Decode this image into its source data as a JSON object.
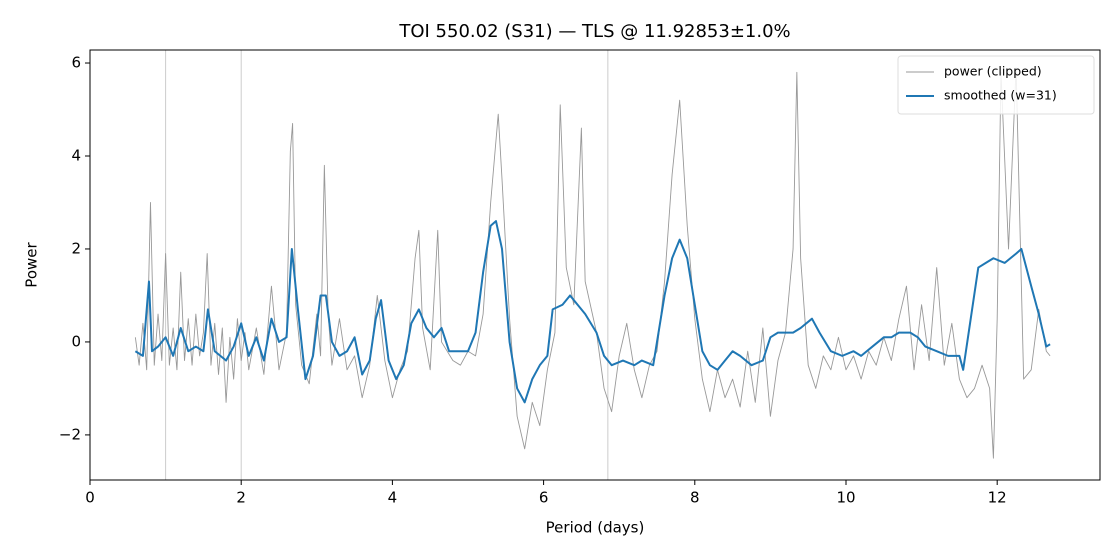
{
  "chart_data": {
    "type": "line",
    "title": "TOI 550.02 (S31) — TLS @ 11.92853±1.0%",
    "x_label": "Period (days)",
    "y_label": "Power",
    "xlim": [
      0,
      13.36
    ],
    "ylim": [
      -2.97,
      6.28
    ],
    "xticks": [
      0,
      2,
      4,
      6,
      8,
      10,
      12
    ],
    "yticks": [
      {
        "value": -2,
        "label": "−2"
      },
      0,
      2,
      4,
      6
    ],
    "vlines": [
      1.0,
      2.0,
      6.85
    ],
    "vline_color": "#cccccc",
    "legend": "upper right",
    "series": [
      {
        "name": "power (clipped)",
        "color": "#999999",
        "width": 0.9,
        "x": [
          0.6,
          0.65,
          0.7,
          0.75,
          0.8,
          0.85,
          0.9,
          0.95,
          1.0,
          1.05,
          1.1,
          1.15,
          1.2,
          1.25,
          1.3,
          1.35,
          1.4,
          1.45,
          1.5,
          1.55,
          1.6,
          1.65,
          1.7,
          1.75,
          1.8,
          1.85,
          1.9,
          1.95,
          2.0,
          2.05,
          2.1,
          2.2,
          2.3,
          2.4,
          2.5,
          2.6,
          2.65,
          2.68,
          2.72,
          2.8,
          2.9,
          3.0,
          3.05,
          3.1,
          3.15,
          3.2,
          3.3,
          3.4,
          3.5,
          3.6,
          3.7,
          3.8,
          3.9,
          4.0,
          4.1,
          4.2,
          4.3,
          4.35,
          4.4,
          4.5,
          4.6,
          4.65,
          4.8,
          4.9,
          5.0,
          5.1,
          5.2,
          5.3,
          5.4,
          5.45,
          5.55,
          5.65,
          5.75,
          5.85,
          5.95,
          6.05,
          6.15,
          6.22,
          6.3,
          6.4,
          6.5,
          6.55,
          6.7,
          6.8,
          6.9,
          7.0,
          7.1,
          7.2,
          7.3,
          7.4,
          7.5,
          7.6,
          7.7,
          7.8,
          7.9,
          8.0,
          8.1,
          8.2,
          8.3,
          8.4,
          8.5,
          8.6,
          8.7,
          8.8,
          8.9,
          9.0,
          9.1,
          9.2,
          9.3,
          9.35,
          9.4,
          9.5,
          9.6,
          9.7,
          9.8,
          9.9,
          10.0,
          10.1,
          10.2,
          10.3,
          10.4,
          10.5,
          10.6,
          10.7,
          10.8,
          10.9,
          11.0,
          11.1,
          11.2,
          11.3,
          11.4,
          11.5,
          11.6,
          11.7,
          11.8,
          11.9,
          11.95,
          12.0,
          12.05,
          12.15,
          12.25,
          12.35,
          12.45,
          12.55,
          12.65,
          12.7
        ],
        "values": [
          0.1,
          -0.5,
          0.4,
          -0.6,
          3.0,
          -0.5,
          0.6,
          -0.4,
          1.9,
          -0.5,
          0.3,
          -0.6,
          1.5,
          -0.4,
          0.5,
          -0.5,
          0.6,
          -0.3,
          0.2,
          1.9,
          -0.5,
          0.4,
          -0.7,
          0.3,
          -1.3,
          0.1,
          -0.8,
          0.5,
          -0.4,
          0.2,
          -0.6,
          0.3,
          -0.7,
          1.2,
          -0.6,
          0.2,
          4.1,
          4.7,
          0.8,
          -0.5,
          -0.9,
          0.6,
          -0.3,
          3.8,
          0.6,
          -0.5,
          0.5,
          -0.6,
          -0.3,
          -1.2,
          -0.5,
          1.0,
          -0.4,
          -1.2,
          -0.6,
          -0.2,
          1.8,
          2.4,
          0.3,
          -0.6,
          2.4,
          0.0,
          -0.4,
          -0.5,
          -0.2,
          -0.3,
          0.6,
          3.0,
          4.9,
          3.5,
          0.5,
          -1.6,
          -2.3,
          -1.3,
          -1.8,
          -0.6,
          0.2,
          5.1,
          1.6,
          0.8,
          4.6,
          1.3,
          0.2,
          -1.0,
          -1.5,
          -0.3,
          0.4,
          -0.6,
          -1.2,
          -0.5,
          -0.2,
          1.3,
          3.6,
          5.2,
          2.5,
          0.5,
          -0.8,
          -1.5,
          -0.6,
          -1.2,
          -0.8,
          -1.4,
          -0.2,
          -1.3,
          0.3,
          -1.6,
          -0.4,
          0.2,
          2.0,
          5.8,
          1.8,
          -0.5,
          -1.0,
          -0.3,
          -0.6,
          0.1,
          -0.6,
          -0.3,
          -0.8,
          -0.2,
          -0.5,
          0.1,
          -0.4,
          0.5,
          1.2,
          -0.6,
          0.8,
          -0.4,
          1.6,
          -0.5,
          0.4,
          -0.8,
          -1.2,
          -1.0,
          -0.5,
          -1.0,
          -2.5,
          0.5,
          5.8,
          2.0,
          5.9,
          -0.8,
          -0.6,
          0.7,
          -0.2,
          -0.3
        ]
      },
      {
        "name": "smoothed (w=31)",
        "color": "#1f77b4",
        "width": 2,
        "x": [
          0.6,
          0.7,
          0.78,
          0.82,
          0.9,
          1.0,
          1.1,
          1.2,
          1.3,
          1.4,
          1.5,
          1.56,
          1.65,
          1.8,
          1.9,
          2.0,
          2.1,
          2.2,
          2.3,
          2.4,
          2.5,
          2.6,
          2.67,
          2.75,
          2.85,
          2.95,
          3.05,
          3.12,
          3.2,
          3.3,
          3.4,
          3.5,
          3.6,
          3.7,
          3.78,
          3.85,
          3.95,
          4.05,
          4.15,
          4.25,
          4.35,
          4.45,
          4.55,
          4.65,
          4.75,
          4.9,
          5.0,
          5.1,
          5.2,
          5.3,
          5.37,
          5.45,
          5.55,
          5.65,
          5.75,
          5.85,
          5.95,
          6.05,
          6.12,
          6.25,
          6.35,
          6.45,
          6.55,
          6.7,
          6.8,
          6.9,
          7.05,
          7.2,
          7.3,
          7.45,
          7.6,
          7.7,
          7.8,
          7.9,
          8.0,
          8.1,
          8.2,
          8.3,
          8.4,
          8.5,
          8.6,
          8.75,
          8.9,
          9.0,
          9.1,
          9.2,
          9.3,
          9.4,
          9.55,
          9.65,
          9.8,
          9.95,
          10.1,
          10.2,
          10.35,
          10.5,
          10.6,
          10.7,
          10.85,
          10.95,
          11.05,
          11.2,
          11.35,
          11.5,
          11.55,
          11.65,
          11.75,
          11.85,
          11.95,
          12.1,
          12.25,
          12.32,
          12.45,
          12.55,
          12.65,
          12.7
        ],
        "values": [
          -0.2,
          -0.3,
          1.3,
          -0.2,
          -0.1,
          0.1,
          -0.3,
          0.3,
          -0.2,
          -0.1,
          -0.2,
          0.7,
          -0.2,
          -0.4,
          -0.1,
          0.4,
          -0.3,
          0.1,
          -0.4,
          0.5,
          0.0,
          0.1,
          2.0,
          0.7,
          -0.8,
          -0.3,
          1.0,
          1.0,
          0.0,
          -0.3,
          -0.2,
          0.1,
          -0.7,
          -0.4,
          0.5,
          0.9,
          -0.4,
          -0.8,
          -0.5,
          0.4,
          0.7,
          0.3,
          0.1,
          0.3,
          -0.2,
          -0.2,
          -0.2,
          0.2,
          1.5,
          2.5,
          2.6,
          2.0,
          0.0,
          -1.0,
          -1.3,
          -0.8,
          -0.5,
          -0.3,
          0.7,
          0.8,
          1.0,
          0.8,
          0.6,
          0.2,
          -0.3,
          -0.5,
          -0.4,
          -0.5,
          -0.4,
          -0.5,
          1.0,
          1.8,
          2.2,
          1.8,
          0.8,
          -0.2,
          -0.5,
          -0.6,
          -0.4,
          -0.2,
          -0.3,
          -0.5,
          -0.4,
          0.1,
          0.2,
          0.2,
          0.2,
          0.3,
          0.5,
          0.2,
          -0.2,
          -0.3,
          -0.2,
          -0.3,
          -0.1,
          0.1,
          0.1,
          0.2,
          0.2,
          0.1,
          -0.1,
          -0.2,
          -0.3,
          -0.3,
          -0.6,
          0.5,
          1.6,
          1.7,
          1.8,
          1.7,
          1.9,
          2.0,
          1.2,
          0.6,
          -0.1,
          -0.05
        ]
      }
    ]
  }
}
